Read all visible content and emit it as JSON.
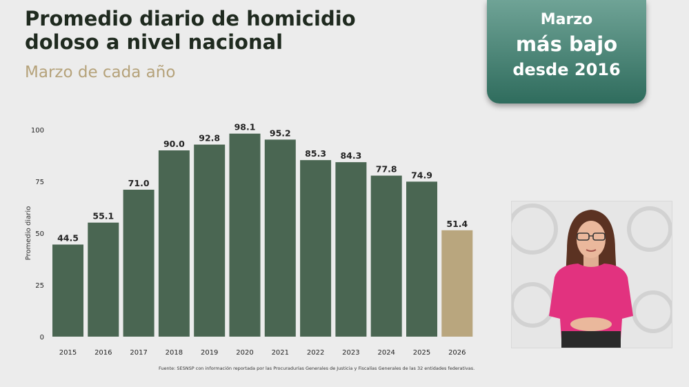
{
  "header": {
    "title": "Promedio diario de homicidio doloso a nivel nacional",
    "subtitle": "Marzo de cada año"
  },
  "badge": {
    "line1": "Marzo",
    "line2": "más bajo",
    "line3": "desde 2016"
  },
  "colors": {
    "bar": "#4a6652",
    "highlight": "#b9a67e",
    "badge": "#3f7a6b"
  },
  "chart_data": {
    "type": "bar",
    "title": "Promedio diario de homicidio doloso a nivel nacional",
    "subtitle": "Marzo de cada año",
    "xlabel": "",
    "ylabel": "Promedio diario",
    "ylim": [
      0,
      100
    ],
    "yticks": [
      0,
      25,
      50,
      75,
      100
    ],
    "grid": false,
    "categories": [
      "2015",
      "2016",
      "2017",
      "2018",
      "2019",
      "2020",
      "2021",
      "2022",
      "2023",
      "2024",
      "2025",
      "2026"
    ],
    "values": [
      44.5,
      55.1,
      71.0,
      90.0,
      92.8,
      98.1,
      95.2,
      85.3,
      84.3,
      77.8,
      74.9,
      51.4
    ],
    "value_labels": [
      "44.5",
      "55.1",
      "71.0",
      "90.0",
      "92.8",
      "98.1",
      "95.2",
      "85.3",
      "84.3",
      "77.8",
      "74.9",
      "51.4"
    ],
    "highlight_category": "2026"
  },
  "footer": {
    "source": "Fuente: SESNSP con información reportada por las Procuradurías Generales de Justicia y Fiscalías Generales de las 32 entidades federativas."
  },
  "interpreter": {
    "label": "sign-language-interpreter"
  }
}
